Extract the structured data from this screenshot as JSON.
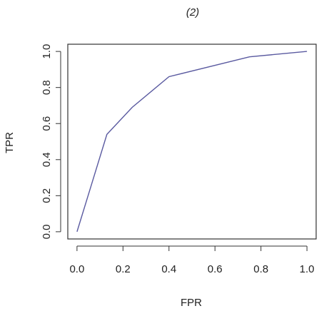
{
  "chart_data": {
    "type": "line",
    "title": "(2)",
    "x_label": "FPR",
    "y_label": "TPR",
    "x": [
      0,
      0.13,
      0.24,
      0.4,
      0.75,
      1
    ],
    "series": [
      {
        "color": "#5a5aa0",
        "values": [
          0,
          0.54,
          0.69,
          0.86,
          0.97,
          1
        ]
      }
    ],
    "xlim": [
      -0.04,
      1.04
    ],
    "ylim": [
      -0.04,
      1.04
    ],
    "xticks": [
      {
        "value": 0,
        "label": "0.0"
      },
      0.2,
      0.4,
      0.6,
      0.8,
      {
        "value": 1,
        "label": "1.0"
      }
    ],
    "yticks": [
      {
        "value": 0,
        "label": "0.0"
      },
      0.2,
      0.4,
      0.6,
      0.8,
      {
        "value": 1,
        "label": "1.0"
      }
    ]
  }
}
